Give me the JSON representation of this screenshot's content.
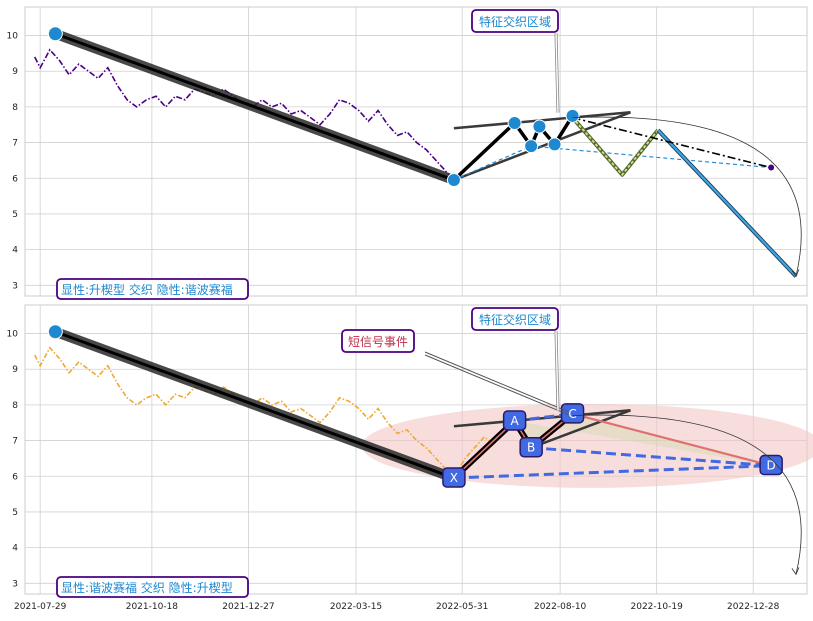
{
  "x_ticks": [
    "2021-07-29",
    "2021-10-18",
    "2021-12-27",
    "2022-03-15",
    "2022-05-31",
    "2022-08-10",
    "2022-10-19",
    "2022-12-28"
  ],
  "y_ticks": [
    "3",
    "4",
    "5",
    "6",
    "7",
    "8",
    "9",
    "10"
  ],
  "colors": {
    "top_series": "#4b0082",
    "bottom_series": "#f0a830",
    "main_line": "#111111",
    "zone_blue": "#1e88d0",
    "accent": "#4169e1",
    "highlight_fill": "#f4c6c6"
  },
  "chart_data": [
    {
      "type": "line",
      "panel": "top",
      "annotation_label": "特征交织区域",
      "legend_text": "显性:升楔型 交织 隐性:谐波赛福",
      "x_range": [
        "2021-07-18",
        "2023-02-05"
      ],
      "ylim": [
        2.7,
        10.8
      ],
      "price_series": [
        [
          "2021-07-25",
          9.4
        ],
        [
          "2021-07-29",
          9.1
        ],
        [
          "2021-08-05",
          9.6
        ],
        [
          "2021-08-12",
          9.3
        ],
        [
          "2021-08-19",
          8.9
        ],
        [
          "2021-08-26",
          9.2
        ],
        [
          "2021-09-02",
          9.0
        ],
        [
          "2021-09-09",
          8.8
        ],
        [
          "2021-09-16",
          9.1
        ],
        [
          "2021-09-23",
          8.6
        ],
        [
          "2021-09-30",
          8.2
        ],
        [
          "2021-10-07",
          8.0
        ],
        [
          "2021-10-14",
          8.2
        ],
        [
          "2021-10-21",
          8.3
        ],
        [
          "2021-10-28",
          8.0
        ],
        [
          "2021-11-04",
          8.3
        ],
        [
          "2021-11-11",
          8.2
        ],
        [
          "2021-11-18",
          8.5
        ],
        [
          "2021-11-25",
          8.4
        ],
        [
          "2021-12-02",
          8.3
        ],
        [
          "2021-12-09",
          8.5
        ],
        [
          "2021-12-16",
          8.3
        ],
        [
          "2021-12-23",
          8.1
        ],
        [
          "2021-12-30",
          8.0
        ],
        [
          "2022-01-06",
          8.2
        ],
        [
          "2022-01-13",
          8.0
        ],
        [
          "2022-01-20",
          8.1
        ],
        [
          "2022-01-27",
          7.8
        ],
        [
          "2022-02-03",
          7.9
        ],
        [
          "2022-02-10",
          7.7
        ],
        [
          "2022-02-17",
          7.5
        ],
        [
          "2022-02-24",
          7.8
        ],
        [
          "2022-03-03",
          8.2
        ],
        [
          "2022-03-10",
          8.1
        ],
        [
          "2022-03-17",
          7.9
        ],
        [
          "2022-03-24",
          7.6
        ],
        [
          "2022-03-31",
          7.9
        ],
        [
          "2022-04-07",
          7.5
        ],
        [
          "2022-04-14",
          7.2
        ],
        [
          "2022-04-21",
          7.3
        ],
        [
          "2022-04-28",
          7.0
        ],
        [
          "2022-05-05",
          6.8
        ],
        [
          "2022-05-12",
          6.5
        ],
        [
          "2022-05-19",
          6.2
        ],
        [
          "2022-05-25",
          5.95
        ]
      ],
      "wave_points": [
        {
          "x": "2021-08-09",
          "y": 10.05
        },
        {
          "x": "2022-05-25",
          "y": 5.95
        },
        {
          "x": "2022-07-08",
          "y": 7.55
        },
        {
          "x": "2022-07-20",
          "y": 6.9
        },
        {
          "x": "2022-07-26",
          "y": 7.45
        },
        {
          "x": "2022-08-06",
          "y": 6.95
        },
        {
          "x": "2022-08-19",
          "y": 7.75
        }
      ],
      "wedge_lines": [
        [
          [
            "2022-05-25",
            7.4
          ],
          [
            "2022-09-30",
            7.85
          ]
        ],
        [
          [
            "2022-05-25",
            5.95
          ],
          [
            "2022-09-30",
            7.85
          ]
        ]
      ],
      "forecast_dashdot": [
        [
          "2022-08-19",
          7.7
        ],
        [
          "2023-01-10",
          6.3
        ]
      ],
      "forecast_zigzag": [
        [
          "2022-08-19",
          7.7
        ],
        [
          "2022-09-24",
          6.1
        ],
        [
          "2022-10-20",
          7.35
        ]
      ],
      "forecast_blue": [
        [
          "2022-10-20",
          7.35
        ],
        [
          "2023-01-28",
          3.25
        ]
      ],
      "forecast_dashed": [
        [
          "2022-05-25",
          5.95
        ],
        [
          "2022-07-20",
          6.9
        ],
        [
          "2023-01-10",
          6.3
        ]
      ],
      "target_arc": [
        [
          "2022-08-19",
          7.7
        ],
        [
          "2023-01-28",
          3.25
        ]
      ]
    },
    {
      "type": "line",
      "panel": "bottom",
      "annotation_label": "特征交织区域",
      "signal_label": "短信号事件",
      "legend_text": "显性:谐波赛福 交织 隐性:升楔型",
      "x_range": [
        "2021-07-18",
        "2023-02-05"
      ],
      "ylim": [
        2.7,
        10.8
      ],
      "price_series": [
        [
          "2021-07-25",
          9.4
        ],
        [
          "2021-07-29",
          9.1
        ],
        [
          "2021-08-05",
          9.6
        ],
        [
          "2021-08-12",
          9.3
        ],
        [
          "2021-08-19",
          8.9
        ],
        [
          "2021-08-26",
          9.2
        ],
        [
          "2021-09-02",
          9.0
        ],
        [
          "2021-09-09",
          8.8
        ],
        [
          "2021-09-16",
          9.1
        ],
        [
          "2021-09-23",
          8.6
        ],
        [
          "2021-09-30",
          8.2
        ],
        [
          "2021-10-07",
          8.0
        ],
        [
          "2021-10-14",
          8.2
        ],
        [
          "2021-10-21",
          8.3
        ],
        [
          "2021-10-28",
          8.0
        ],
        [
          "2021-11-04",
          8.3
        ],
        [
          "2021-11-11",
          8.2
        ],
        [
          "2021-11-18",
          8.5
        ],
        [
          "2021-11-25",
          8.4
        ],
        [
          "2021-12-02",
          8.3
        ],
        [
          "2021-12-09",
          8.5
        ],
        [
          "2021-12-16",
          8.3
        ],
        [
          "2021-12-23",
          8.1
        ],
        [
          "2021-12-30",
          8.0
        ],
        [
          "2022-01-06",
          8.2
        ],
        [
          "2022-01-13",
          8.0
        ],
        [
          "2022-01-20",
          8.1
        ],
        [
          "2022-01-27",
          7.8
        ],
        [
          "2022-02-03",
          7.9
        ],
        [
          "2022-02-10",
          7.7
        ],
        [
          "2022-02-17",
          7.5
        ],
        [
          "2022-02-24",
          7.8
        ],
        [
          "2022-03-03",
          8.2
        ],
        [
          "2022-03-10",
          8.1
        ],
        [
          "2022-03-17",
          7.9
        ],
        [
          "2022-03-24",
          7.6
        ],
        [
          "2022-03-31",
          7.9
        ],
        [
          "2022-04-07",
          7.5
        ],
        [
          "2022-04-14",
          7.2
        ],
        [
          "2022-04-21",
          7.3
        ],
        [
          "2022-04-28",
          7.0
        ],
        [
          "2022-05-05",
          6.8
        ],
        [
          "2022-05-12",
          6.5
        ],
        [
          "2022-05-19",
          6.2
        ],
        [
          "2022-05-25",
          5.95
        ],
        [
          "2022-06-02",
          6.5
        ],
        [
          "2022-06-09",
          6.8
        ],
        [
          "2022-06-16",
          7.1
        ],
        [
          "2022-06-23",
          6.9
        ],
        [
          "2022-06-30",
          7.3
        ]
      ],
      "points": [
        {
          "label": "X",
          "x": "2022-05-25",
          "y": 5.95
        },
        {
          "label": "A",
          "x": "2022-07-08",
          "y": 7.55
        },
        {
          "label": "B",
          "x": "2022-07-20",
          "y": 6.8
        },
        {
          "label": "C",
          "x": "2022-08-19",
          "y": 7.75
        },
        {
          "label": "D",
          "x": "2023-01-10",
          "y": 6.3
        }
      ],
      "lead_point": {
        "x": "2021-08-09",
        "y": 10.05
      },
      "wedge_lines": [
        [
          [
            "2022-05-25",
            7.4
          ],
          [
            "2022-09-30",
            7.85
          ]
        ],
        [
          [
            "2022-07-20",
            6.8
          ],
          [
            "2022-09-30",
            7.85
          ]
        ]
      ],
      "target_arc": [
        [
          "2022-08-19",
          7.7
        ],
        [
          "2023-01-28",
          3.25
        ]
      ]
    }
  ]
}
